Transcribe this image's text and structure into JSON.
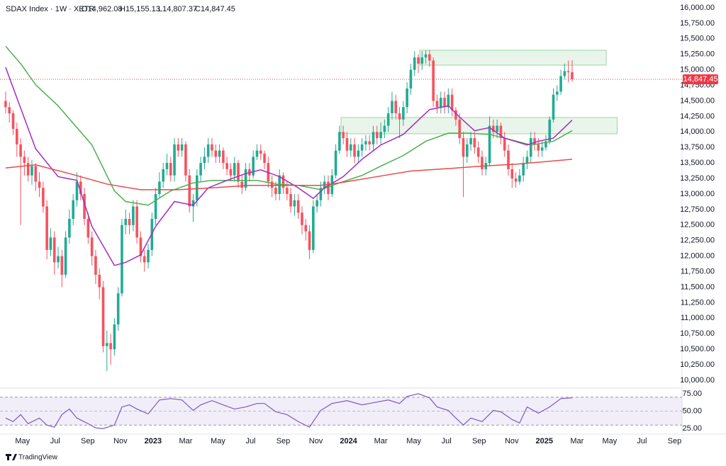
{
  "header": {
    "title": "SDAX Index · 1W · XETR",
    "ohlc": [
      "O14,962.08",
      "H15,155.13",
      "L14,807.37",
      "C14,847.45"
    ]
  },
  "chart_data": {
    "type": "candlestick",
    "up_color": "#22ab94",
    "down_color": "#f7525f",
    "xlim": [
      -1.5,
      180.3
    ],
    "xticks": [
      {
        "value": 4.5,
        "label": "May"
      },
      {
        "value": 13.2,
        "label": "Jul"
      },
      {
        "value": 21.9,
        "label": "Sep"
      },
      {
        "value": 30.6,
        "label": "Nov"
      },
      {
        "value": 39.3,
        "label": "2023"
      },
      {
        "value": 48,
        "label": "Mar"
      },
      {
        "value": 56.6,
        "label": "May"
      },
      {
        "value": 65.3,
        "label": "Jul"
      },
      {
        "value": 74,
        "label": "Sep"
      },
      {
        "value": 82.7,
        "label": "Nov"
      },
      {
        "value": 91.4,
        "label": "2024"
      },
      {
        "value": 100,
        "label": "Mar"
      },
      {
        "value": 108.8,
        "label": "May"
      },
      {
        "value": 117.5,
        "label": "Jul"
      },
      {
        "value": 126.2,
        "label": "Sep"
      },
      {
        "value": 134.9,
        "label": "Nov"
      },
      {
        "value": 143.6,
        "label": "2025"
      },
      {
        "value": 152.3,
        "label": "Mar"
      },
      {
        "value": 161,
        "label": "May"
      },
      {
        "value": 169.6,
        "label": "Jul"
      },
      {
        "value": 178.3,
        "label": "Sep"
      }
    ],
    "ylim": [
      9886,
      16125
    ],
    "yticks": [
      {
        "value": 10000,
        "label": "10,000.00"
      },
      {
        "value": 10250,
        "label": "10,250.00"
      },
      {
        "value": 10500,
        "label": "10,500.00"
      },
      {
        "value": 10750,
        "label": "10,750.00"
      },
      {
        "value": 11000,
        "label": "11,000.00"
      },
      {
        "value": 11250,
        "label": "11,250.00"
      },
      {
        "value": 11500,
        "label": "11,500.00"
      },
      {
        "value": 11750,
        "label": "11,750.00"
      },
      {
        "value": 12000,
        "label": "12,000.00"
      },
      {
        "value": 12250,
        "label": "12,250.00"
      },
      {
        "value": 12500,
        "label": "12,500.00"
      },
      {
        "value": 12750,
        "label": "12,750.00"
      },
      {
        "value": 13000,
        "label": "13,000.00"
      },
      {
        "value": 13250,
        "label": "13,250.00"
      },
      {
        "value": 13500,
        "label": "13,500.00"
      },
      {
        "value": 13750,
        "label": "13,750.00"
      },
      {
        "value": 14000,
        "label": "14,000.00"
      },
      {
        "value": 14250,
        "label": "14,250.00"
      },
      {
        "value": 14500,
        "label": "14,500.00"
      },
      {
        "value": 14750,
        "label": "14,750.00"
      },
      {
        "value": 15000,
        "label": "15,000.00"
      },
      {
        "value": 15250,
        "label": "15,250.00"
      },
      {
        "value": 15500,
        "label": "15,500.00"
      },
      {
        "value": 15750,
        "label": "15,750.00"
      },
      {
        "value": 16000,
        "label": "16,000.00"
      }
    ],
    "open": [
      14500,
      14400,
      14300,
      14050,
      13800,
      13600,
      13500,
      13300,
      13450,
      13200,
      13100,
      12800,
      12100,
      12300,
      11900,
      12000,
      11700,
      12300,
      12600,
      12900,
      13200,
      13000,
      12600,
      12300,
      12000,
      11700,
      11500,
      10550,
      10600,
      10500,
      10900,
      11400,
      12500,
      12600,
      12500,
      12800,
      12300,
      12000,
      11900,
      12100,
      12600,
      13000,
      13200,
      13400,
      13500,
      13300,
      13800,
      13700,
      13800,
      13300,
      12800,
      12900,
      13300,
      13500,
      13600,
      13800,
      13700,
      13600,
      13700,
      13500,
      13400,
      13300,
      13500,
      13200,
      13100,
      13400,
      13300,
      13600,
      13700,
      13650,
      13500,
      13200,
      13100,
      13000,
      13300,
      13100,
      13000,
      12800,
      12900,
      12700,
      12500,
      12400,
      12100,
      12800,
      12900,
      13100,
      13200,
      13000,
      13300,
      13700,
      14000,
      13900,
      13700,
      13800,
      13600,
      13700,
      13800,
      13850,
      13800,
      14000,
      13900,
      14000,
      14100,
      14300,
      14500,
      14300,
      14200,
      14400,
      14700,
      15000,
      15200,
      15100,
      15200,
      15250,
      15150,
      14500,
      14400,
      14550,
      14400,
      14600,
      14350,
      14200,
      13900,
      13600,
      13800,
      13900,
      13750,
      13600,
      13400,
      13500,
      14100,
      14000,
      14100,
      13900,
      13700,
      13400,
      13250,
      13200,
      13300,
      13500,
      13600,
      13900,
      13800,
      13700,
      13750,
      13850,
      14200,
      14600,
      14650,
      14900,
      14980,
      14962.08
    ],
    "high": [
      14650,
      14480,
      14350,
      14150,
      13900,
      13700,
      13600,
      13550,
      13500,
      13350,
      13200,
      12900,
      12450,
      12400,
      12150,
      12100,
      12400,
      12750,
      13000,
      13350,
      13300,
      13100,
      12700,
      12400,
      12100,
      11800,
      11600,
      10800,
      10750,
      11000,
      11500,
      12600,
      12750,
      12700,
      12900,
      12900,
      12400,
      12100,
      12200,
      12700,
      13100,
      13350,
      13500,
      13650,
      13600,
      13900,
      13900,
      13900,
      13850,
      13400,
      13000,
      13400,
      13600,
      13750,
      13900,
      13900,
      13800,
      13800,
      13750,
      13600,
      13500,
      13600,
      13550,
      13300,
      13500,
      13500,
      13700,
      13800,
      13800,
      13700,
      13600,
      13300,
      13200,
      13400,
      13350,
      13200,
      13100,
      13000,
      13000,
      12800,
      12600,
      12500,
      12900,
      13000,
      13200,
      13300,
      13300,
      13400,
      13800,
      14100,
      14100,
      14000,
      13900,
      13900,
      13800,
      13900,
      13950,
      13950,
      14100,
      14100,
      14150,
      14200,
      14400,
      14650,
      14600,
      14400,
      14500,
      14800,
      15100,
      15300,
      15250,
      15300,
      15320,
      15320,
      15200,
      14600,
      14650,
      14650,
      14700,
      14700,
      14400,
      14300,
      14000,
      13900,
      14000,
      14000,
      13850,
      13700,
      13600,
      14250,
      14200,
      14200,
      14150,
      14000,
      13800,
      13500,
      13350,
      13400,
      13600,
      13700,
      14000,
      14000,
      13900,
      13850,
      13950,
      14250,
      14700,
      14750,
      15000,
      15100,
      15150,
      15155.13
    ],
    "low": [
      14300,
      14150,
      13950,
      13600,
      12500,
      13300,
      13200,
      13150,
      13050,
      12950,
      12700,
      11950,
      12000,
      11700,
      11800,
      11500,
      11650,
      12200,
      12500,
      12800,
      12900,
      12500,
      12200,
      11850,
      11550,
      11300,
      10450,
      10150,
      10250,
      10400,
      10800,
      11350,
      12350,
      12350,
      12400,
      12200,
      11900,
      11750,
      11800,
      12000,
      12500,
      12950,
      13100,
      13300,
      13200,
      13200,
      13600,
      13600,
      13200,
      12700,
      12550,
      12800,
      13200,
      13400,
      13500,
      13600,
      13500,
      13500,
      13400,
      13300,
      13200,
      13200,
      13100,
      13000,
      13050,
      13200,
      13250,
      13550,
      13550,
      13400,
      13100,
      12950,
      12900,
      12900,
      13000,
      12900,
      12700,
      12650,
      12600,
      12350,
      12250,
      11950,
      12050,
      12700,
      12800,
      13000,
      12900,
      12950,
      13250,
      13650,
      13800,
      13600,
      13600,
      13500,
      13500,
      13600,
      13700,
      13700,
      13700,
      13800,
      13800,
      13900,
      14000,
      14200,
      14200,
      13900,
      14100,
      14300,
      14600,
      14900,
      14950,
      15000,
      15100,
      15050,
      14400,
      14300,
      14300,
      14300,
      14300,
      14250,
      14100,
      13800,
      12950,
      13500,
      13700,
      13650,
      13500,
      13300,
      13300,
      13450,
      13900,
      13900,
      13800,
      13600,
      13300,
      13100,
      13100,
      13150,
      13200,
      13400,
      13500,
      13700,
      13600,
      13600,
      13700,
      13800,
      14150,
      14500,
      14600,
      14850,
      14800,
      14807.37
    ],
    "close": [
      14400,
      14300,
      14050,
      13800,
      13600,
      13500,
      13300,
      13450,
      13200,
      13100,
      12800,
      12100,
      12300,
      11900,
      12000,
      11700,
      12300,
      12600,
      12900,
      13200,
      13000,
      12600,
      12300,
      12000,
      11700,
      11500,
      10550,
      10600,
      10500,
      10900,
      11400,
      12500,
      12600,
      12500,
      12800,
      12300,
      12000,
      11900,
      12100,
      12600,
      13000,
      13200,
      13400,
      13500,
      13300,
      13800,
      13700,
      13800,
      13300,
      12800,
      12900,
      13300,
      13500,
      13600,
      13800,
      13700,
      13600,
      13700,
      13500,
      13400,
      13300,
      13500,
      13200,
      13100,
      13400,
      13300,
      13600,
      13700,
      13650,
      13500,
      13200,
      13100,
      13000,
      13300,
      13100,
      13000,
      12800,
      12900,
      12700,
      12500,
      12400,
      12100,
      12800,
      12900,
      13100,
      13200,
      13000,
      13300,
      13700,
      14000,
      13900,
      13700,
      13800,
      13600,
      13700,
      13800,
      13850,
      13800,
      14000,
      13900,
      14000,
      14100,
      14300,
      14500,
      14300,
      14200,
      14400,
      14700,
      15000,
      15200,
      15100,
      15200,
      15250,
      15150,
      14500,
      14400,
      14550,
      14400,
      14600,
      14350,
      14200,
      13900,
      13600,
      13800,
      13900,
      13750,
      13600,
      13400,
      13500,
      14100,
      14000,
      14100,
      13900,
      13700,
      13400,
      13250,
      13200,
      13300,
      13500,
      13600,
      13900,
      13800,
      13700,
      13750,
      13850,
      14200,
      14600,
      14650,
      14900,
      14980,
      14962.08,
      14847.45
    ],
    "ma": [
      {
        "color": "#4caf50",
        "x": [
          0,
          4,
          8,
          14,
          19,
          23,
          29,
          32,
          38,
          44,
          50,
          55,
          61,
          67,
          72,
          78,
          84,
          89,
          95,
          100,
          106,
          112,
          118,
          123,
          129,
          135,
          140,
          146,
          151
        ],
        "values": [
          15380,
          15100,
          14760,
          14420,
          14070,
          13790,
          13050,
          12880,
          12820,
          13050,
          13180,
          13220,
          13220,
          13220,
          13160,
          13140,
          13070,
          13180,
          13300,
          13450,
          13620,
          13850,
          13980,
          13980,
          13960,
          13870,
          13790,
          13850,
          14020
        ]
      },
      {
        "color": "#a42bc0",
        "x": [
          0,
          8,
          14,
          19,
          23,
          29,
          32,
          36,
          40,
          45,
          50,
          54,
          59,
          64,
          68,
          73,
          78,
          82,
          85,
          90,
          95,
          100,
          106,
          110,
          113,
          118,
          121,
          125,
          129,
          133,
          139,
          142,
          146,
          151
        ],
        "values": [
          15040,
          13730,
          13280,
          13220,
          12480,
          11850,
          11900,
          12020,
          12480,
          12880,
          12820,
          13100,
          13220,
          13330,
          13390,
          13280,
          13100,
          12930,
          13100,
          13280,
          13560,
          13790,
          13960,
          14190,
          14360,
          14420,
          14240,
          14020,
          14070,
          13900,
          13790,
          13850,
          13900,
          14190
        ]
      },
      {
        "color": "#e84a4a",
        "x": [
          0,
          8,
          17,
          27,
          36,
          46,
          55,
          65,
          74,
          84,
          89,
          99,
          108,
          118,
          127,
          136,
          151
        ],
        "values": [
          13420,
          13470,
          13330,
          13160,
          13070,
          13070,
          13100,
          13140,
          13140,
          13140,
          13180,
          13280,
          13370,
          13410,
          13450,
          13480,
          13560
        ]
      }
    ],
    "zones": [
      {
        "x": [
          110.4,
          160.1
        ],
        "y": [
          15076,
          15316
        ],
        "color": "#4caf50"
      },
      {
        "x": [
          89.4,
          163
        ],
        "y": [
          13970,
          14233
        ],
        "color": "#4caf50"
      }
    ],
    "last_price": {
      "value": 14847.45,
      "label": "14,847.45",
      "color": "#f23645"
    },
    "rsi": {
      "type": "line",
      "color": "#7e57c2",
      "ylim": [
        18,
        81
      ],
      "yticks": [
        {
          "value": 75,
          "label": "75.00"
        },
        {
          "value": 50,
          "label": "50.00"
        },
        {
          "value": 25,
          "label": "25.00"
        }
      ],
      "band": [
        30,
        70
      ],
      "midline": 50,
      "x": [
        0,
        2,
        4,
        6,
        9,
        11,
        13,
        15,
        17,
        19,
        22,
        24,
        26,
        29,
        31,
        33,
        35,
        38,
        41,
        44,
        47,
        50,
        52,
        55,
        58,
        61,
        64,
        67,
        69,
        72,
        75,
        78,
        81,
        84,
        87,
        91,
        95,
        99,
        102,
        105,
        107,
        110,
        113,
        115,
        118,
        120,
        122,
        124,
        127,
        130,
        132,
        135,
        137,
        139,
        142,
        145,
        148,
        151
      ],
      "values": [
        40,
        35,
        45,
        32,
        40,
        30,
        27,
        45,
        53,
        40,
        32,
        26,
        25,
        30,
        56,
        59,
        53,
        46,
        66,
        68,
        66,
        51,
        59,
        65,
        59,
        53,
        56,
        61,
        61,
        49,
        45,
        35,
        27,
        51,
        61,
        65,
        59,
        63,
        66,
        61,
        71,
        75,
        69,
        56,
        51,
        40,
        30,
        40,
        35,
        51,
        49,
        38,
        33,
        56,
        47,
        56,
        68,
        69
      ]
    }
  },
  "footer": {
    "brand": "TradingView"
  }
}
